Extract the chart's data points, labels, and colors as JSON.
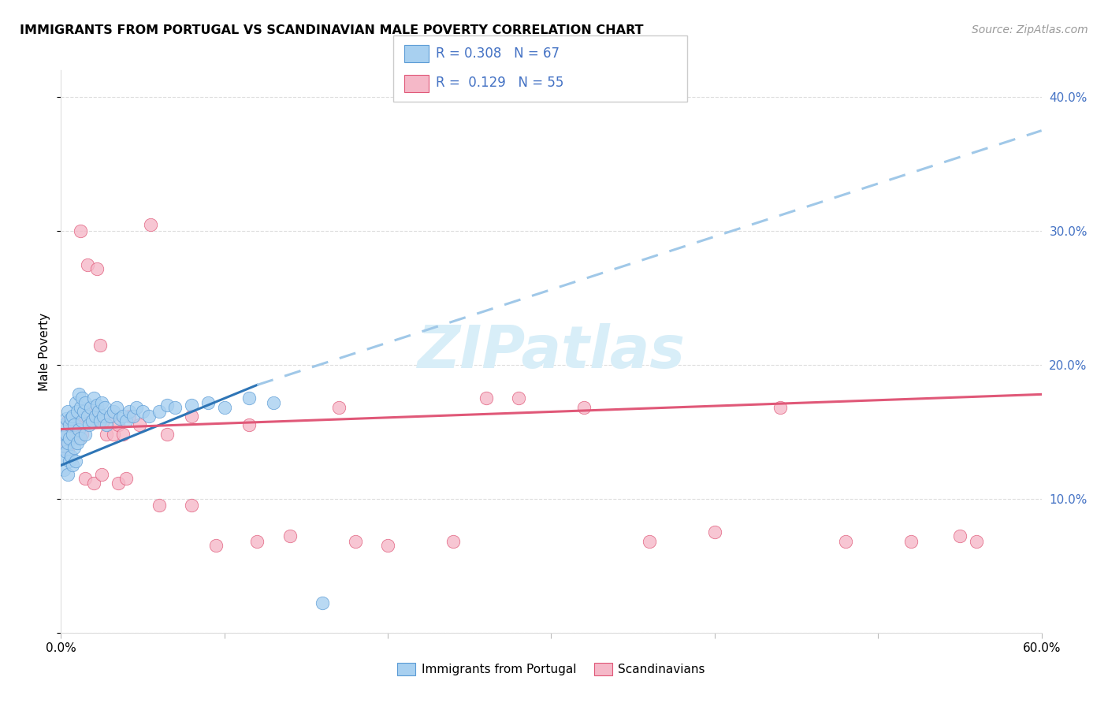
{
  "title": "IMMIGRANTS FROM PORTUGAL VS SCANDINAVIAN MALE POVERTY CORRELATION CHART",
  "source": "Source: ZipAtlas.com",
  "ylabel": "Male Poverty",
  "legend_label1": "Immigrants from Portugal",
  "legend_label2": "Scandinavians",
  "r1": "0.308",
  "n1": "67",
  "r2": "0.129",
  "n2": "55",
  "xmin": 0.0,
  "xmax": 0.6,
  "ymin": 0.0,
  "ymax": 0.42,
  "ytick_vals": [
    0.0,
    0.1,
    0.2,
    0.3,
    0.4
  ],
  "ytick_labels_right": [
    "",
    "10.0%",
    "20.0%",
    "30.0%",
    "40.0%"
  ],
  "xtick_vals": [
    0.0,
    0.1,
    0.2,
    0.3,
    0.4,
    0.5,
    0.6
  ],
  "xtick_labels": [
    "0.0%",
    "",
    "",
    "",
    "",
    "",
    "60.0%"
  ],
  "color_blue_fill": "#A8D0F0",
  "color_blue_edge": "#5B9BD5",
  "color_pink_fill": "#F5B8C8",
  "color_pink_edge": "#E05878",
  "color_blue_line": "#2E75B6",
  "color_pink_line": "#E05878",
  "color_dashed_line": "#A0C8E8",
  "color_right_axis": "#4472C4",
  "color_grid": "#DDDDDD",
  "watermark_color": "#D8EEF8",
  "blue_x": [
    0.001,
    0.001,
    0.002,
    0.002,
    0.002,
    0.003,
    0.003,
    0.003,
    0.004,
    0.004,
    0.004,
    0.005,
    0.005,
    0.005,
    0.006,
    0.006,
    0.007,
    0.007,
    0.007,
    0.008,
    0.008,
    0.009,
    0.009,
    0.01,
    0.01,
    0.011,
    0.011,
    0.012,
    0.012,
    0.013,
    0.013,
    0.014,
    0.015,
    0.015,
    0.016,
    0.017,
    0.018,
    0.019,
    0.02,
    0.021,
    0.022,
    0.023,
    0.024,
    0.025,
    0.026,
    0.027,
    0.028,
    0.03,
    0.032,
    0.034,
    0.036,
    0.038,
    0.04,
    0.042,
    0.044,
    0.046,
    0.05,
    0.054,
    0.06,
    0.065,
    0.07,
    0.08,
    0.09,
    0.1,
    0.115,
    0.13,
    0.16
  ],
  "blue_y": [
    0.13,
    0.148,
    0.122,
    0.14,
    0.155,
    0.135,
    0.148,
    0.16,
    0.118,
    0.142,
    0.165,
    0.128,
    0.155,
    0.145,
    0.132,
    0.16,
    0.125,
    0.148,
    0.162,
    0.138,
    0.155,
    0.128,
    0.172,
    0.142,
    0.165,
    0.152,
    0.178,
    0.145,
    0.168,
    0.158,
    0.175,
    0.165,
    0.148,
    0.172,
    0.162,
    0.155,
    0.168,
    0.158,
    0.175,
    0.162,
    0.17,
    0.165,
    0.158,
    0.172,
    0.162,
    0.168,
    0.155,
    0.162,
    0.165,
    0.168,
    0.16,
    0.162,
    0.158,
    0.165,
    0.162,
    0.168,
    0.165,
    0.162,
    0.165,
    0.17,
    0.168,
    0.17,
    0.172,
    0.168,
    0.175,
    0.172,
    0.022
  ],
  "pink_x": [
    0.002,
    0.003,
    0.004,
    0.004,
    0.005,
    0.006,
    0.007,
    0.008,
    0.009,
    0.01,
    0.011,
    0.012,
    0.013,
    0.015,
    0.016,
    0.018,
    0.02,
    0.022,
    0.024,
    0.026,
    0.028,
    0.03,
    0.032,
    0.035,
    0.038,
    0.042,
    0.048,
    0.055,
    0.065,
    0.08,
    0.095,
    0.115,
    0.14,
    0.17,
    0.2,
    0.24,
    0.28,
    0.32,
    0.36,
    0.4,
    0.44,
    0.48,
    0.52,
    0.55,
    0.56,
    0.015,
    0.02,
    0.025,
    0.035,
    0.04,
    0.06,
    0.08,
    0.12,
    0.18,
    0.26
  ],
  "pink_y": [
    0.148,
    0.142,
    0.158,
    0.135,
    0.152,
    0.145,
    0.155,
    0.148,
    0.158,
    0.152,
    0.145,
    0.3,
    0.148,
    0.162,
    0.275,
    0.158,
    0.168,
    0.272,
    0.215,
    0.158,
    0.148,
    0.162,
    0.148,
    0.155,
    0.148,
    0.162,
    0.155,
    0.305,
    0.148,
    0.162,
    0.065,
    0.155,
    0.072,
    0.168,
    0.065,
    0.068,
    0.175,
    0.168,
    0.068,
    0.075,
    0.168,
    0.068,
    0.068,
    0.072,
    0.068,
    0.115,
    0.112,
    0.118,
    0.112,
    0.115,
    0.095,
    0.095,
    0.068,
    0.068,
    0.175
  ]
}
